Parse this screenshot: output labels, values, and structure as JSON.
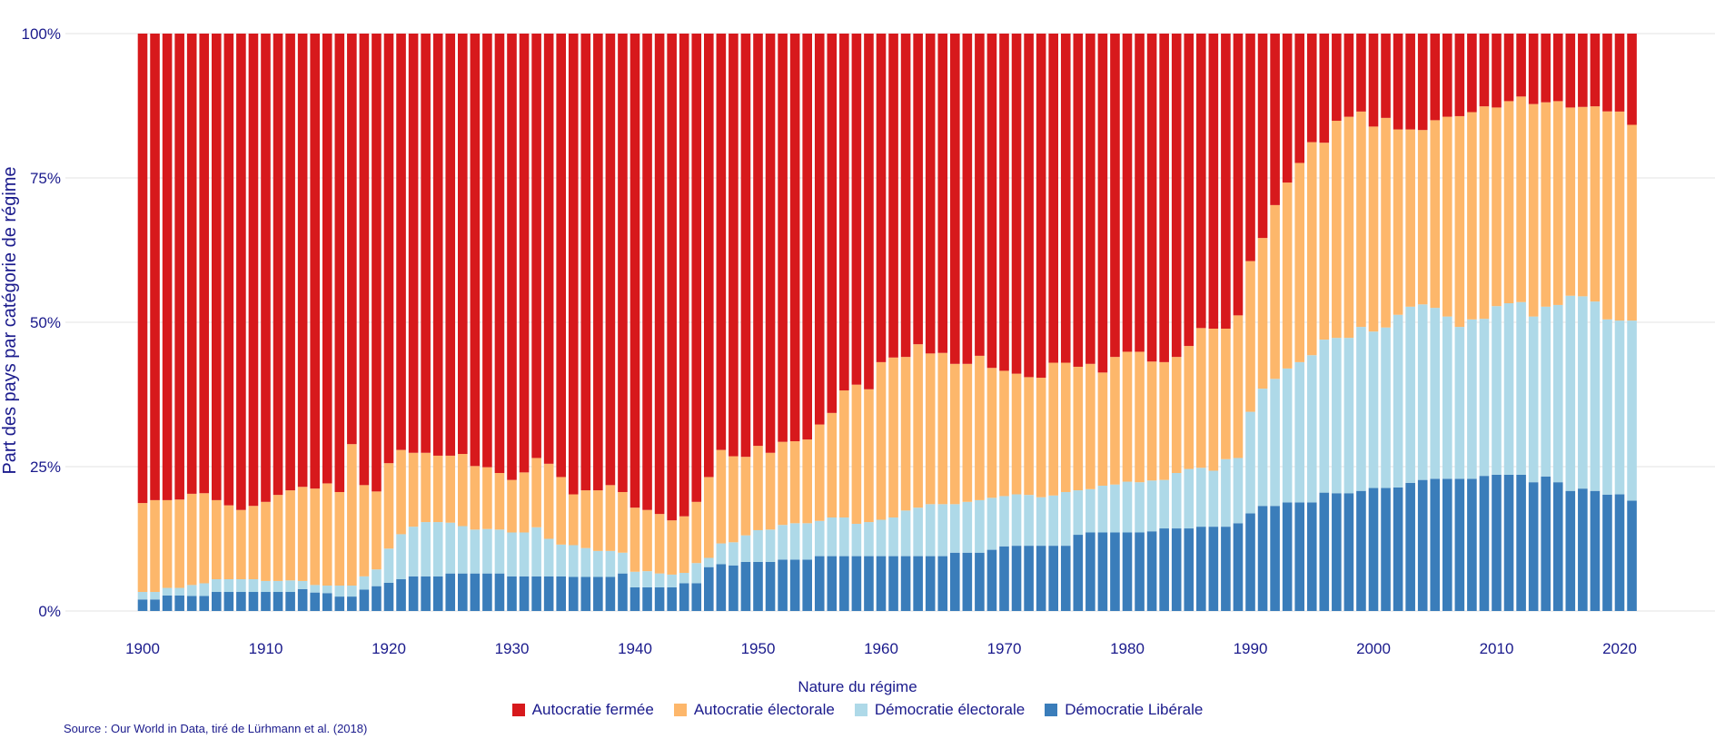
{
  "chart_data": {
    "type": "bar",
    "stacked": true,
    "percent": true,
    "ylabel": "Part des pays par catégorie de régime",
    "xlabel": "",
    "ylim": [
      0,
      100
    ],
    "yticks": [
      "0%",
      "25%",
      "50%",
      "75%",
      "100%"
    ],
    "xticks": [
      "1900",
      "1910",
      "1920",
      "1930",
      "1940",
      "1950",
      "1960",
      "1970",
      "1980",
      "1990",
      "2000",
      "2010",
      "2020"
    ],
    "grid": true,
    "legend_title": "Nature du régime",
    "legend_position": "bottom",
    "source": "Source : Our World in Data, tiré de Lürhmann et al. (2018)",
    "x": [
      1900,
      1901,
      1902,
      1903,
      1904,
      1905,
      1906,
      1907,
      1908,
      1909,
      1910,
      1911,
      1912,
      1913,
      1914,
      1915,
      1916,
      1917,
      1918,
      1919,
      1920,
      1921,
      1922,
      1923,
      1924,
      1925,
      1926,
      1927,
      1928,
      1929,
      1930,
      1931,
      1932,
      1933,
      1934,
      1935,
      1936,
      1937,
      1938,
      1939,
      1940,
      1941,
      1942,
      1943,
      1944,
      1945,
      1946,
      1947,
      1948,
      1949,
      1950,
      1951,
      1952,
      1953,
      1954,
      1955,
      1956,
      1957,
      1958,
      1959,
      1960,
      1961,
      1962,
      1963,
      1964,
      1965,
      1966,
      1967,
      1968,
      1969,
      1970,
      1971,
      1972,
      1973,
      1974,
      1975,
      1976,
      1977,
      1978,
      1979,
      1980,
      1981,
      1982,
      1983,
      1984,
      1985,
      1986,
      1987,
      1988,
      1989,
      1990,
      1991,
      1992,
      1993,
      1994,
      1995,
      1996,
      1997,
      1998,
      1999,
      2000,
      2001,
      2002,
      2003,
      2004,
      2005,
      2006,
      2007,
      2008,
      2009,
      2010,
      2011,
      2012,
      2013,
      2014,
      2015,
      2016,
      2017,
      2018,
      2019,
      2020,
      2021
    ],
    "series": [
      {
        "name": "Démocratie Libérale",
        "color": "#3a7dba",
        "values": [
          2.0,
          2.0,
          2.7,
          2.7,
          2.6,
          2.6,
          3.3,
          3.3,
          3.3,
          3.3,
          3.3,
          3.3,
          3.3,
          3.8,
          3.2,
          3.1,
          2.5,
          2.5,
          3.7,
          4.3,
          4.9,
          5.5,
          6.0,
          6.0,
          6.0,
          6.5,
          6.5,
          6.5,
          6.5,
          6.5,
          6.0,
          6.0,
          6.0,
          6.0,
          6.0,
          5.9,
          5.9,
          5.9,
          5.9,
          6.5,
          4.1,
          4.1,
          4.1,
          4.1,
          4.8,
          4.8,
          7.6,
          8.1,
          7.9,
          8.5,
          8.5,
          8.5,
          8.9,
          8.9,
          8.9,
          9.5,
          9.5,
          9.5,
          9.5,
          9.5,
          9.5,
          9.5,
          9.5,
          9.5,
          9.5,
          9.5,
          10.1,
          10.1,
          10.1,
          10.6,
          11.2,
          11.3,
          11.3,
          11.3,
          11.3,
          11.3,
          13.2,
          13.6,
          13.6,
          13.6,
          13.6,
          13.6,
          13.8,
          14.3,
          14.3,
          14.3,
          14.6,
          14.6,
          14.6,
          15.2,
          16.9,
          18.2,
          18.2,
          18.8,
          18.8,
          18.8,
          20.5,
          20.4,
          20.4,
          20.8,
          21.3,
          21.3,
          21.4,
          22.2,
          22.7,
          22.9,
          22.9,
          22.9,
          22.9,
          23.4,
          23.6,
          23.6,
          23.6,
          22.3,
          23.3,
          22.3,
          20.8,
          21.2,
          20.8,
          20.2,
          20.2,
          19.1
        ]
      },
      {
        "name": "Démocratie électorale",
        "color": "#aed9e8",
        "values": [
          1.3,
          1.3,
          1.3,
          1.3,
          1.9,
          2.2,
          2.2,
          2.2,
          2.2,
          2.2,
          1.9,
          1.9,
          2.0,
          1.4,
          1.3,
          1.3,
          1.9,
          1.9,
          2.3,
          2.9,
          5.9,
          7.8,
          8.6,
          9.4,
          9.4,
          8.8,
          8.2,
          7.6,
          7.7,
          7.6,
          7.6,
          7.6,
          8.5,
          6.5,
          5.5,
          5.5,
          5.0,
          4.5,
          4.5,
          3.6,
          2.7,
          2.8,
          2.4,
          2.2,
          1.8,
          3.5,
          1.6,
          3.6,
          4.0,
          4.6,
          5.5,
          5.6,
          6.0,
          6.3,
          6.3,
          6.1,
          6.7,
          6.7,
          5.6,
          5.9,
          6.3,
          6.7,
          7.9,
          8.4,
          9.0,
          9.0,
          8.4,
          8.8,
          9.1,
          9.0,
          8.7,
          8.9,
          8.8,
          8.4,
          8.7,
          9.3,
          7.7,
          7.5,
          8.1,
          8.3,
          8.8,
          8.7,
          8.8,
          8.4,
          9.6,
          10.3,
          10.2,
          9.7,
          11.7,
          11.3,
          17.6,
          20.3,
          22.0,
          23.2,
          24.3,
          25.5,
          26.5,
          26.9,
          26.9,
          28.4,
          27.1,
          27.8,
          29.9,
          30.5,
          30.4,
          29.6,
          28.1,
          26.3,
          27.6,
          27.2,
          29.2,
          29.7,
          29.9,
          28.7,
          29.4,
          30.7,
          33.8,
          33.3,
          32.8,
          30.4,
          30.1,
          31.2
        ]
      },
      {
        "name": "Autocratie électorale",
        "color": "#fdb76b",
        "values": [
          15.4,
          15.9,
          15.2,
          15.3,
          15.8,
          15.6,
          13.7,
          12.8,
          12.0,
          12.7,
          13.7,
          14.9,
          15.6,
          16.3,
          16.7,
          17.7,
          16.2,
          24.5,
          15.8,
          13.5,
          14.8,
          14.6,
          12.8,
          12.0,
          11.5,
          11.6,
          12.5,
          11.0,
          10.7,
          9.8,
          9.1,
          10.4,
          12.0,
          13.0,
          11.7,
          8.8,
          10.0,
          10.5,
          11.4,
          10.5,
          11.1,
          10.6,
          10.3,
          9.4,
          9.8,
          10.6,
          14.0,
          16.2,
          14.9,
          13.6,
          14.6,
          13.3,
          14.4,
          14.2,
          14.5,
          16.7,
          18.1,
          22.0,
          24.1,
          23.0,
          27.3,
          27.7,
          26.6,
          28.3,
          26.1,
          26.2,
          24.3,
          23.9,
          25.0,
          22.5,
          21.7,
          20.9,
          20.4,
          20.7,
          23.0,
          22.4,
          21.4,
          21.7,
          19.6,
          22.1,
          22.5,
          22.6,
          20.6,
          20.4,
          20.1,
          21.3,
          24.2,
          24.6,
          22.6,
          24.7,
          26.1,
          26.1,
          30.1,
          32.2,
          34.5,
          36.9,
          34.1,
          37.6,
          38.3,
          37.3,
          35.5,
          36.3,
          32.1,
          30.7,
          30.2,
          32.5,
          34.6,
          36.5,
          35.9,
          36.8,
          34.4,
          35.0,
          35.6,
          36.8,
          35.4,
          35.3,
          32.6,
          32.8,
          33.8,
          36.1,
          36.2,
          33.9
        ]
      },
      {
        "name": "Autocratie fermée",
        "color": "#d7191c",
        "values": [
          81.3,
          80.8,
          80.8,
          80.7,
          79.7,
          79.6,
          80.8,
          81.7,
          82.5,
          81.8,
          81.1,
          79.9,
          79.1,
          78.5,
          78.8,
          77.9,
          79.4,
          71.1,
          78.2,
          79.3,
          74.4,
          72.1,
          72.6,
          72.6,
          73.1,
          73.1,
          72.8,
          74.9,
          75.1,
          76.1,
          77.3,
          76.0,
          73.5,
          74.5,
          76.8,
          79.8,
          79.1,
          79.1,
          78.2,
          79.4,
          82.1,
          82.5,
          83.2,
          84.3,
          83.6,
          81.1,
          76.8,
          72.1,
          73.2,
          73.3,
          71.4,
          72.6,
          70.7,
          70.6,
          70.3,
          67.7,
          65.7,
          61.8,
          60.8,
          61.6,
          56.9,
          56.1,
          56.0,
          53.8,
          55.4,
          55.3,
          57.2,
          57.2,
          55.8,
          57.9,
          58.4,
          58.9,
          59.5,
          59.6,
          57.0,
          57.0,
          57.7,
          57.2,
          58.7,
          56.0,
          55.1,
          55.1,
          56.8,
          56.9,
          56.0,
          54.1,
          51.0,
          51.1,
          51.1,
          48.8,
          39.4,
          35.4,
          29.7,
          25.8,
          22.4,
          18.8,
          18.9,
          15.1,
          14.4,
          13.5,
          16.1,
          14.6,
          16.6,
          16.6,
          16.7,
          15.0,
          14.4,
          14.3,
          13.6,
          12.6,
          12.8,
          11.7,
          10.9,
          12.2,
          11.9,
          11.7,
          12.8,
          12.7,
          12.6,
          13.5,
          13.5,
          15.8
        ]
      }
    ],
    "legend_order": [
      "Autocratie fermée",
      "Autocratie électorale",
      "Démocratie électorale",
      "Démocratie Libérale"
    ]
  }
}
